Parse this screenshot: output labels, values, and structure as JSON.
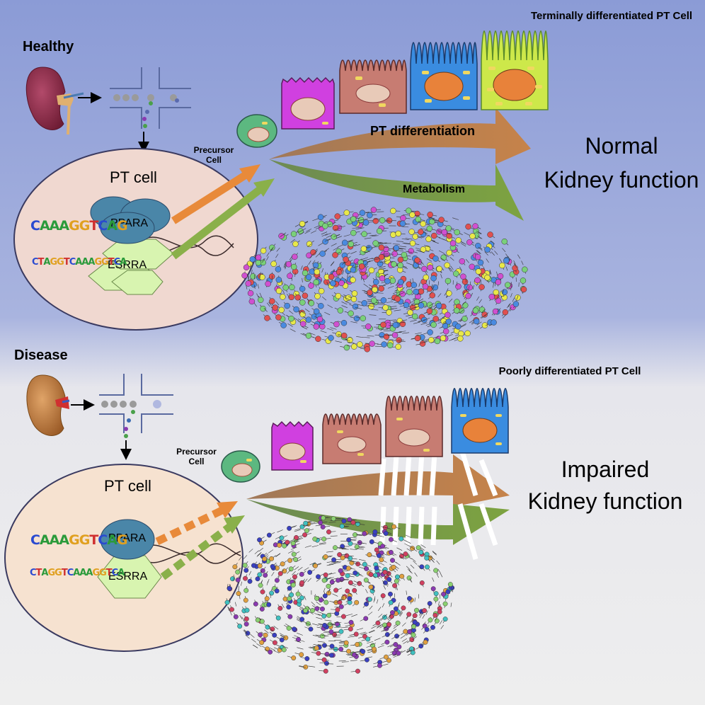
{
  "healthy": {
    "heading": "Healthy",
    "pt_cell_label": "PT cell",
    "ppara_label": "PPARA",
    "esrra_label": "ESRRA",
    "motif_ppara": "CAAAGGTCAG",
    "motif_esrra": "CTAGGTCAAAGGTCA",
    "precursor_label": "Precursor Cell",
    "terminal_label": "Terminally differentiated PT Cell",
    "pt_differentiation_label": "PT differentiation",
    "metabolism_label": "Metabolism",
    "outcome_line1": "Normal",
    "outcome_line2": "Kidney function"
  },
  "disease": {
    "heading": "Disease",
    "pt_cell_label": "PT cell",
    "ppara_label": "PPARA",
    "esrra_label": "ESRRA",
    "motif_ppara": "CAAAGGTCAG",
    "motif_esrra": "CTAGGTCAAAGGTCA",
    "precursor_label": "Precursor Cell",
    "poor_label": "Poorly differentiated PT Cell",
    "outcome_line1": "Impaired",
    "outcome_line2": "Kidney function"
  },
  "colors": {
    "top_bg": "#8ea0d8",
    "bottom_bg": "#eeeeee",
    "pt_cell_fill_healthy": "#f0d8d0",
    "pt_cell_fill_disease": "#f6e2d0",
    "ppara": "#4a86a8",
    "esrra": "#d8f4b0",
    "diff_arrow": "#c6834a",
    "metab_arrow": "#7da340",
    "cell_magenta": "#d040e0",
    "cell_rose": "#c77c72",
    "cell_blue": "#3a8ce0",
    "cell_lime": "#cde84a",
    "nucleus": "#e8823a"
  }
}
